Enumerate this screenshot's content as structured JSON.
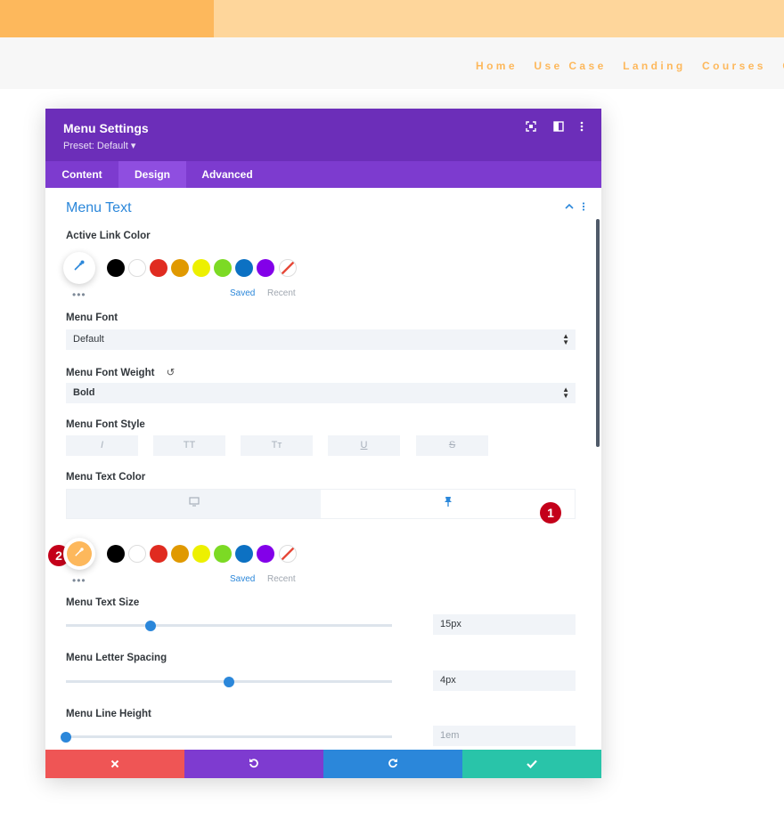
{
  "nav": {
    "links": [
      "Home",
      "Use Case",
      "Landing",
      "Courses",
      "Co"
    ]
  },
  "modal": {
    "title": "Menu Settings",
    "preset": "Preset: Default ▾",
    "header_icons": [
      "focus-icon",
      "columns-icon",
      "more-vertical-icon"
    ],
    "tabs": [
      {
        "label": "Content",
        "active": false
      },
      {
        "label": "Design",
        "active": true
      },
      {
        "label": "Advanced",
        "active": false
      }
    ],
    "section": {
      "title": "Menu Text"
    },
    "active_link_color": {
      "label": "Active Link Color",
      "picker_color": "#ffffff",
      "saved": "Saved",
      "recent": "Recent"
    },
    "swatches": [
      "#000000",
      "#ffffff",
      "#e02b20",
      "#e09900",
      "#edf000",
      "#7cda24",
      "#0c71c3",
      "#8300e9"
    ],
    "menu_font": {
      "label": "Menu Font",
      "value": "Default"
    },
    "menu_font_weight": {
      "label": "Menu Font Weight",
      "value": "Bold"
    },
    "menu_font_style": {
      "label": "Menu Font Style",
      "buttons": [
        "I",
        "TT",
        "Tт",
        "U",
        "S"
      ]
    },
    "menu_text_color": {
      "label": "Menu Text Color",
      "picker_color": "#fdb85c",
      "saved": "Saved",
      "recent": "Recent"
    },
    "badges": [
      "1",
      "2"
    ],
    "menu_text_size": {
      "label": "Menu Text Size",
      "value": "15px",
      "fraction": 0.26
    },
    "menu_letter_spacing": {
      "label": "Menu Letter Spacing",
      "value": "4px",
      "fraction": 0.5
    },
    "menu_line_height": {
      "label": "Menu Line Height",
      "value": "1em",
      "fraction": 0.0
    },
    "footer": {
      "cancel_color": "#ef5555",
      "undo_color": "#7e3bd0",
      "redo_color": "#2b87da",
      "save_color": "#29c4a9"
    }
  }
}
